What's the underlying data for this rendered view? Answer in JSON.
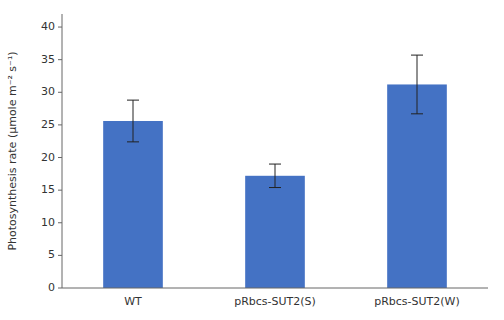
{
  "chart_data": {
    "type": "bar",
    "categories": [
      "WT",
      "pRbcs-SUT2(S)",
      "pRbcs-SUT2(W)"
    ],
    "values": [
      25.6,
      17.2,
      31.2
    ],
    "errors": [
      3.2,
      1.8,
      4.5
    ],
    "color": "#4472C4",
    "ylabel": "Photosynthesis rate (μmole m⁻² s⁻¹)",
    "ylim": [
      0,
      42
    ],
    "yticks": [
      0,
      5,
      10,
      15,
      20,
      25,
      30,
      35,
      40
    ],
    "grid": false
  }
}
